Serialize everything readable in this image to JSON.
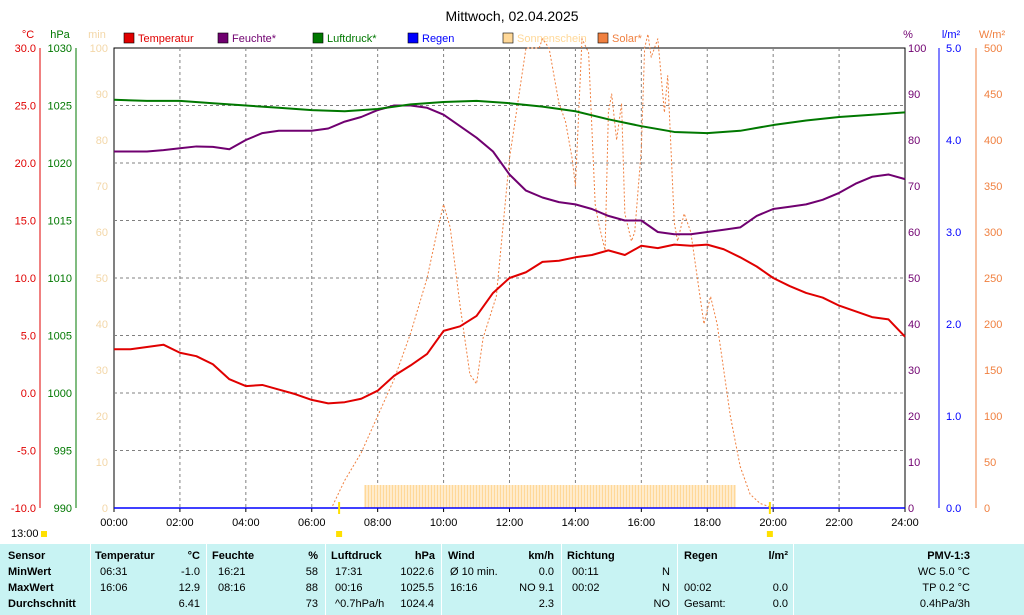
{
  "title": "Mittwoch, 02.04.2025",
  "colors": {
    "temperature": "#e00000",
    "humidity": "#700070",
    "pressure": "#007800",
    "rain": "#0000ff",
    "sunshine": "#ffd898",
    "solar": "#f08040",
    "axis_min": "#f3d7a8"
  },
  "axes": {
    "temp": {
      "unit": "°C",
      "ticks": [
        "30.0",
        "25.0",
        "20.0",
        "15.0",
        "10.0",
        "5.0",
        "0.0",
        "-5.0",
        "-10.0"
      ]
    },
    "pressure": {
      "unit": "hPa",
      "ticks": [
        "1030",
        "1025",
        "1020",
        "1015",
        "1010",
        "1005",
        "1000",
        "995",
        "990"
      ]
    },
    "minutes": {
      "unit": "min",
      "ticks": [
        "100",
        "90",
        "80",
        "70",
        "60",
        "50",
        "40",
        "30",
        "20",
        "10",
        "0"
      ]
    },
    "humidity": {
      "unit": "%",
      "ticks": [
        "100",
        "90",
        "80",
        "70",
        "60",
        "50",
        "40",
        "30",
        "20",
        "10",
        "0"
      ]
    },
    "rain": {
      "unit": "l/m²",
      "ticks": [
        "5.0",
        "4.0",
        "3.0",
        "2.0",
        "1.0",
        "0.0"
      ]
    },
    "solar": {
      "unit": "W/m²",
      "ticks": [
        "500",
        "450",
        "400",
        "350",
        "300",
        "250",
        "200",
        "150",
        "100",
        "50",
        "0"
      ]
    },
    "x_ticks": [
      "00:00",
      "02:00",
      "04:00",
      "06:00",
      "08:00",
      "10:00",
      "12:00",
      "14:00",
      "16:00",
      "18:00",
      "20:00",
      "22:00",
      "24:00"
    ]
  },
  "legend": [
    {
      "label": "Temperatur",
      "color_key": "temperature"
    },
    {
      "label": "Feuchte*",
      "color_key": "humidity"
    },
    {
      "label": "Luftdruck*",
      "color_key": "pressure"
    },
    {
      "label": "Regen",
      "color_key": "rain"
    },
    {
      "label": "Sonnenschein",
      "color_key": "sunshine"
    },
    {
      "label": "Solar*",
      "color_key": "solar"
    }
  ],
  "time_label": "13:00",
  "sun_markers": {
    "sunrise_hour": 6.83,
    "sunset_hour": 19.9
  },
  "chart_data": {
    "type": "line",
    "x_unit": "hour",
    "x_range": [
      0,
      24
    ],
    "series": [
      {
        "name": "Temperatur",
        "unit": "°C",
        "range": [
          -10,
          30
        ],
        "x": [
          0,
          0.5,
          1.0,
          1.5,
          2.0,
          2.5,
          3.0,
          3.5,
          4.0,
          4.5,
          5.0,
          5.5,
          6.0,
          6.5,
          7.0,
          7.5,
          8.0,
          8.5,
          9.0,
          9.5,
          10.0,
          10.5,
          11.0,
          11.5,
          12.0,
          12.5,
          13.0,
          13.5,
          14.0,
          14.5,
          15.0,
          15.5,
          16.0,
          16.5,
          17.0,
          17.5,
          18.0,
          18.5,
          19.0,
          19.5,
          20.0,
          20.5,
          21.0,
          21.5,
          22.0,
          22.5,
          23.0,
          23.5,
          24.0
        ],
        "values": [
          3.8,
          3.8,
          4.0,
          4.2,
          3.5,
          3.2,
          2.5,
          1.2,
          0.6,
          0.7,
          0.3,
          -0.1,
          -0.6,
          -0.9,
          -0.8,
          -0.5,
          0.2,
          1.5,
          2.4,
          3.4,
          5.4,
          5.8,
          6.7,
          8.7,
          10.0,
          10.5,
          11.4,
          11.5,
          11.8,
          12.0,
          12.4,
          12.0,
          12.8,
          12.6,
          12.9,
          12.8,
          12.9,
          12.5,
          11.8,
          11.0,
          10.0,
          9.3,
          8.7,
          8.3,
          7.6,
          7.1,
          6.6,
          6.4,
          4.9
        ]
      },
      {
        "name": "Feuchte*",
        "unit": "%",
        "range": [
          0,
          100
        ],
        "x": [
          0,
          0.5,
          1.0,
          1.5,
          2.0,
          2.5,
          3.0,
          3.5,
          4.0,
          4.5,
          5.0,
          5.5,
          6.0,
          6.5,
          7.0,
          7.5,
          8.0,
          8.5,
          9.0,
          9.5,
          10.0,
          10.5,
          11.0,
          11.5,
          12.0,
          12.5,
          13.0,
          13.5,
          14.0,
          14.5,
          15.0,
          15.5,
          16.0,
          16.5,
          17.0,
          17.5,
          18.0,
          18.5,
          19.0,
          19.5,
          20.0,
          20.5,
          21.0,
          21.5,
          22.0,
          22.5,
          23.0,
          23.5,
          24.0
        ],
        "values": [
          77.5,
          77.5,
          77.5,
          77.8,
          78.2,
          78.6,
          78.5,
          78.0,
          80.0,
          81.5,
          82.0,
          82.0,
          82.0,
          82.5,
          84.0,
          85.0,
          86.5,
          87.5,
          87.5,
          87.0,
          85.5,
          83.0,
          80.5,
          77.5,
          72.5,
          69.0,
          67.5,
          66.5,
          66.0,
          65.0,
          63.5,
          62.5,
          62.5,
          60.0,
          59.5,
          59.5,
          60.0,
          60.5,
          61.0,
          63.5,
          65.0,
          65.5,
          66.0,
          67.0,
          68.5,
          70.5,
          72.0,
          72.5,
          71.5
        ]
      },
      {
        "name": "Luftdruck*",
        "unit": "hPa",
        "range": [
          990,
          1030
        ],
        "x": [
          0,
          1,
          2,
          3,
          4,
          5,
          6,
          7,
          8,
          9,
          10,
          11,
          12,
          13,
          14,
          15,
          16,
          17,
          18,
          19,
          20,
          21,
          22,
          23,
          24
        ],
        "values": [
          1025.5,
          1025.4,
          1025.4,
          1025.2,
          1025.0,
          1024.8,
          1024.6,
          1024.5,
          1024.7,
          1025.1,
          1025.3,
          1025.4,
          1025.2,
          1024.9,
          1024.5,
          1023.8,
          1023.2,
          1022.7,
          1022.6,
          1022.8,
          1023.3,
          1023.7,
          1024.0,
          1024.2,
          1024.4
        ]
      },
      {
        "name": "Solar*",
        "unit": "W/m²",
        "range": [
          0,
          500
        ],
        "x": [
          0,
          6.6,
          7.0,
          7.5,
          8.0,
          8.5,
          9.0,
          9.5,
          9.8,
          10.0,
          10.2,
          10.5,
          10.8,
          11.0,
          11.2,
          11.6,
          12.0,
          12.5,
          12.9,
          13.0,
          13.2,
          13.5,
          13.7,
          13.9,
          14.0,
          14.2,
          14.4,
          14.6,
          14.7,
          14.9,
          15.0,
          15.1,
          15.25,
          15.4,
          15.5,
          15.7,
          15.8,
          16.0,
          16.1,
          16.2,
          16.3,
          16.5,
          16.7,
          16.8,
          17.0,
          17.1,
          17.3,
          17.5,
          17.7,
          17.9,
          18.1,
          18.3,
          18.5,
          18.7,
          19.0,
          19.3,
          19.6,
          20.0,
          20.5,
          21,
          24
        ],
        "values": [
          0,
          0,
          30,
          60,
          100,
          140,
          190,
          250,
          300,
          330,
          305,
          220,
          145,
          135,
          185,
          230,
          380,
          500,
          500,
          510,
          500,
          440,
          420,
          380,
          350,
          510,
          495,
          330,
          310,
          280,
          430,
          450,
          400,
          440,
          320,
          290,
          300,
          390,
          500,
          515,
          490,
          510,
          430,
          470,
          310,
          290,
          320,
          300,
          250,
          200,
          230,
          200,
          150,
          100,
          45,
          15,
          5,
          0,
          0,
          0,
          0
        ]
      },
      {
        "name": "Sonnenschein",
        "unit": "min",
        "range": [
          0,
          100
        ],
        "x": [
          7.6,
          8.2,
          12.0,
          14.7,
          18.8
        ],
        "values": [
          5,
          5,
          5,
          5,
          5
        ]
      },
      {
        "name": "Regen",
        "unit": "l/m²",
        "range": [
          0,
          5
        ],
        "x": [
          0,
          24
        ],
        "values": [
          0,
          0
        ]
      }
    ]
  },
  "info": {
    "header": {
      "sensor": "Sensor",
      "temp": "Temperatur",
      "temp_unit": "°C",
      "hum": "Feuchte",
      "hum_unit": "%",
      "press": "Luftdruck",
      "press_unit": "hPa",
      "wind": "Wind",
      "wind_unit": "km/h",
      "dir": "Richtung",
      "rain": "Regen",
      "rain_unit": "l/m²",
      "pmv": "PMV-1:3"
    },
    "rows": [
      {
        "label": "MinWert",
        "temp_time": "06:31",
        "temp_val": "-1.0",
        "hum_time": "16:21",
        "hum_val": "58",
        "press_time": "17:31",
        "press_val": "1022.6",
        "wind_time": "Ø 10 min.",
        "wind_val": "0.0",
        "dir_time": "00:11",
        "dir_val": "N",
        "rain_time": "",
        "rain_val": "",
        "pmv": "WC 5.0 °C"
      },
      {
        "label": "MaxWert",
        "temp_time": "16:06",
        "temp_val": "12.9",
        "hum_time": "08:16",
        "hum_val": "88",
        "press_time": "00:16",
        "press_val": "1025.5",
        "wind_time": "16:16",
        "wind_val": "NO 9.1",
        "dir_time": "00:02",
        "dir_val": "N",
        "rain_time": "00:02",
        "rain_val": "0.0",
        "pmv": "TP 0.2 °C"
      },
      {
        "label": "Durchschnitt",
        "temp_time": "",
        "temp_val": "6.41",
        "hum_time": "",
        "hum_val": "73",
        "press_time": "^0.7hPa/h",
        "press_val": "1024.4",
        "wind_time": "",
        "wind_val": "2.3",
        "dir_time": "",
        "dir_val": "NO",
        "rain_time": "Gesamt:",
        "rain_val": "0.0",
        "pmv": "0.4hPa/3h"
      }
    ]
  }
}
